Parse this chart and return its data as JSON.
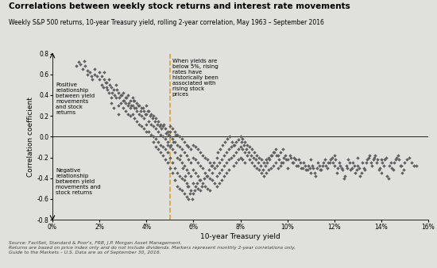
{
  "title": "Correlations between weekly stock returns and interest rate movements",
  "subtitle": "Weekly S&P 500 returns, 10-year Treasury yield, rolling 2-year correlation, May 1963 – September 2016",
  "xlabel": "10-year Treasury yield",
  "ylabel": "Correlation coefficient",
  "xlim": [
    0,
    16
  ],
  "ylim": [
    -0.8,
    0.8
  ],
  "xticks": [
    0,
    2,
    4,
    6,
    8,
    10,
    12,
    14,
    16
  ],
  "yticks": [
    -0.8,
    -0.6,
    -0.4,
    -0.2,
    0.0,
    0.2,
    0.4,
    0.6,
    0.8
  ],
  "vline_x": 5.0,
  "vline_color": "#E8A020",
  "marker_color": "#606060",
  "marker_size": 5,
  "bg_color": "#E0E0DC",
  "annotation_right": "When yields are\nbelow 5%, rising\nrates have\nhistorically been\nassociated with\nrising stock\nprices",
  "annotation_left_top": "Positive\nrelationship\nbetween yield\nmovements\nand stock\nreturns",
  "annotation_left_bot": "Negative\nrelationship\nbetween yield\nmovements and\nstock returns",
  "source_text": "Source: FactSet, Standard & Poor's, FRB, J.P. Morgan Asset Management.\nReturns are based on price index only and do not include dividends. Markers represent monthly 2-year correlations only.\nGuide to the Markets – U.S. Data are as of September 30, 2016.",
  "scatter_data": [
    [
      1.0,
      0.68
    ],
    [
      1.1,
      0.72
    ],
    [
      1.2,
      0.7
    ],
    [
      1.3,
      0.65
    ],
    [
      1.35,
      0.73
    ],
    [
      1.4,
      0.68
    ],
    [
      1.5,
      0.64
    ],
    [
      1.5,
      0.6
    ],
    [
      1.6,
      0.62
    ],
    [
      1.65,
      0.58
    ],
    [
      1.7,
      0.55
    ],
    [
      1.8,
      0.6
    ],
    [
      1.8,
      0.65
    ],
    [
      1.9,
      0.58
    ],
    [
      2.0,
      0.62
    ],
    [
      2.0,
      0.55
    ],
    [
      2.1,
      0.5
    ],
    [
      2.1,
      0.58
    ],
    [
      2.2,
      0.62
    ],
    [
      2.2,
      0.55
    ],
    [
      2.3,
      0.48
    ],
    [
      2.3,
      0.52
    ],
    [
      2.4,
      0.55
    ],
    [
      2.4,
      0.42
    ],
    [
      2.5,
      0.48
    ],
    [
      2.5,
      0.38
    ],
    [
      2.5,
      0.32
    ],
    [
      2.6,
      0.45
    ],
    [
      2.6,
      0.28
    ],
    [
      2.7,
      0.5
    ],
    [
      2.7,
      0.38
    ],
    [
      2.8,
      0.42
    ],
    [
      2.8,
      0.3
    ],
    [
      2.8,
      0.22
    ],
    [
      2.9,
      0.4
    ],
    [
      2.9,
      0.32
    ],
    [
      3.0,
      0.42
    ],
    [
      3.0,
      0.35
    ],
    [
      3.0,
      0.28
    ],
    [
      3.1,
      0.38
    ],
    [
      3.1,
      0.32
    ],
    [
      3.1,
      0.25
    ],
    [
      3.2,
      0.4
    ],
    [
      3.2,
      0.3
    ],
    [
      3.2,
      0.22
    ],
    [
      3.3,
      0.35
    ],
    [
      3.3,
      0.28
    ],
    [
      3.3,
      0.2
    ],
    [
      3.4,
      0.38
    ],
    [
      3.4,
      0.3
    ],
    [
      3.4,
      0.22
    ],
    [
      3.5,
      0.35
    ],
    [
      3.5,
      0.28
    ],
    [
      3.5,
      0.18
    ],
    [
      3.6,
      0.32
    ],
    [
      3.6,
      0.25
    ],
    [
      3.6,
      0.15
    ],
    [
      3.7,
      0.3
    ],
    [
      3.7,
      0.22
    ],
    [
      3.7,
      0.12
    ],
    [
      3.8,
      0.28
    ],
    [
      3.8,
      0.2
    ],
    [
      3.8,
      0.1
    ],
    [
      3.9,
      0.25
    ],
    [
      3.9,
      0.18
    ],
    [
      3.9,
      0.08
    ],
    [
      4.0,
      0.3
    ],
    [
      4.0,
      0.22
    ],
    [
      4.0,
      0.12
    ],
    [
      4.0,
      0.05
    ],
    [
      4.1,
      0.25
    ],
    [
      4.1,
      0.15
    ],
    [
      4.1,
      0.05
    ],
    [
      4.2,
      0.22
    ],
    [
      4.2,
      0.12
    ],
    [
      4.2,
      0.02
    ],
    [
      4.3,
      0.2
    ],
    [
      4.3,
      0.1
    ],
    [
      4.3,
      0.0
    ],
    [
      4.3,
      -0.05
    ],
    [
      4.4,
      0.18
    ],
    [
      4.4,
      0.08
    ],
    [
      4.4,
      -0.02
    ],
    [
      4.4,
      -0.1
    ],
    [
      4.5,
      0.15
    ],
    [
      4.5,
      0.05
    ],
    [
      4.5,
      -0.05
    ],
    [
      4.5,
      -0.12
    ],
    [
      4.6,
      0.12
    ],
    [
      4.6,
      0.02
    ],
    [
      4.6,
      -0.08
    ],
    [
      4.6,
      -0.15
    ],
    [
      4.7,
      0.1
    ],
    [
      4.7,
      0.0
    ],
    [
      4.7,
      -0.1
    ],
    [
      4.7,
      -0.18
    ],
    [
      4.8,
      0.08
    ],
    [
      4.8,
      -0.02
    ],
    [
      4.8,
      -0.12
    ],
    [
      4.8,
      -0.22
    ],
    [
      4.9,
      0.05
    ],
    [
      4.9,
      -0.05
    ],
    [
      4.9,
      -0.15
    ],
    [
      4.9,
      -0.25
    ],
    [
      4.9,
      -0.08
    ],
    [
      5.0,
      0.1
    ],
    [
      5.0,
      0.0
    ],
    [
      5.0,
      -0.1
    ],
    [
      5.0,
      -0.2
    ],
    [
      5.0,
      -0.3
    ],
    [
      5.0,
      0.05
    ],
    [
      5.1,
      0.08
    ],
    [
      5.1,
      -0.02
    ],
    [
      5.1,
      -0.12
    ],
    [
      5.1,
      -0.25
    ],
    [
      5.1,
      -0.35
    ],
    [
      5.2,
      0.05
    ],
    [
      5.2,
      -0.05
    ],
    [
      5.2,
      -0.15
    ],
    [
      5.2,
      -0.3
    ],
    [
      5.2,
      -0.42
    ],
    [
      5.3,
      0.02
    ],
    [
      5.3,
      -0.08
    ],
    [
      5.3,
      -0.2
    ],
    [
      5.3,
      -0.35
    ],
    [
      5.3,
      -0.48
    ],
    [
      5.4,
      0.0
    ],
    [
      5.4,
      -0.1
    ],
    [
      5.4,
      -0.22
    ],
    [
      5.4,
      -0.38
    ],
    [
      5.4,
      -0.5
    ],
    [
      5.5,
      -0.02
    ],
    [
      5.5,
      -0.12
    ],
    [
      5.5,
      -0.25
    ],
    [
      5.5,
      -0.4
    ],
    [
      5.5,
      -0.52
    ],
    [
      5.6,
      -0.05
    ],
    [
      5.6,
      -0.15
    ],
    [
      5.6,
      -0.28
    ],
    [
      5.6,
      -0.42
    ],
    [
      5.6,
      -0.55
    ],
    [
      5.7,
      -0.08
    ],
    [
      5.7,
      -0.18
    ],
    [
      5.7,
      -0.32
    ],
    [
      5.7,
      -0.45
    ],
    [
      5.7,
      -0.58
    ],
    [
      5.8,
      -0.1
    ],
    [
      5.8,
      -0.22
    ],
    [
      5.8,
      -0.35
    ],
    [
      5.8,
      -0.48
    ],
    [
      5.8,
      -0.6
    ],
    [
      5.9,
      -0.12
    ],
    [
      5.9,
      -0.25
    ],
    [
      5.9,
      -0.38
    ],
    [
      5.9,
      -0.52
    ],
    [
      6.0,
      -0.08
    ],
    [
      6.0,
      -0.2
    ],
    [
      6.0,
      -0.32
    ],
    [
      6.0,
      -0.45
    ],
    [
      6.0,
      -0.55
    ],
    [
      6.1,
      -0.1
    ],
    [
      6.1,
      -0.22
    ],
    [
      6.1,
      -0.35
    ],
    [
      6.1,
      -0.48
    ],
    [
      6.2,
      -0.12
    ],
    [
      6.2,
      -0.25
    ],
    [
      6.2,
      -0.38
    ],
    [
      6.2,
      -0.5
    ],
    [
      6.3,
      -0.15
    ],
    [
      6.3,
      -0.28
    ],
    [
      6.3,
      -0.42
    ],
    [
      6.3,
      -0.52
    ],
    [
      6.4,
      -0.18
    ],
    [
      6.4,
      -0.3
    ],
    [
      6.4,
      -0.45
    ],
    [
      6.5,
      -0.2
    ],
    [
      6.5,
      -0.35
    ],
    [
      6.5,
      -0.48
    ],
    [
      6.6,
      -0.22
    ],
    [
      6.6,
      -0.38
    ],
    [
      6.6,
      -0.5
    ],
    [
      6.7,
      -0.25
    ],
    [
      6.7,
      -0.4
    ],
    [
      6.7,
      -0.52
    ],
    [
      6.8,
      -0.28
    ],
    [
      6.8,
      -0.42
    ],
    [
      6.8,
      -0.35
    ],
    [
      6.9,
      -0.3
    ],
    [
      6.9,
      -0.45
    ],
    [
      7.0,
      -0.28
    ],
    [
      7.0,
      -0.38
    ],
    [
      7.0,
      -0.48
    ],
    [
      7.0,
      -0.2
    ],
    [
      7.1,
      -0.25
    ],
    [
      7.1,
      -0.35
    ],
    [
      7.1,
      -0.45
    ],
    [
      7.2,
      -0.22
    ],
    [
      7.2,
      -0.32
    ],
    [
      7.2,
      -0.42
    ],
    [
      7.3,
      -0.18
    ],
    [
      7.3,
      -0.28
    ],
    [
      7.3,
      -0.38
    ],
    [
      7.4,
      -0.15
    ],
    [
      7.4,
      -0.25
    ],
    [
      7.4,
      -0.35
    ],
    [
      7.5,
      -0.12
    ],
    [
      7.5,
      -0.22
    ],
    [
      7.5,
      -0.32
    ],
    [
      7.6,
      -0.1
    ],
    [
      7.6,
      -0.2
    ],
    [
      7.7,
      -0.08
    ],
    [
      7.7,
      -0.18
    ],
    [
      7.7,
      -0.28
    ],
    [
      7.8,
      -0.05
    ],
    [
      7.8,
      -0.15
    ],
    [
      7.8,
      -0.25
    ],
    [
      7.9,
      -0.03
    ],
    [
      7.9,
      -0.12
    ],
    [
      7.9,
      -0.22
    ],
    [
      8.0,
      0.0
    ],
    [
      8.0,
      -0.1
    ],
    [
      8.0,
      -0.2
    ],
    [
      8.1,
      -0.02
    ],
    [
      8.1,
      -0.12
    ],
    [
      8.1,
      -0.22
    ],
    [
      8.2,
      -0.05
    ],
    [
      8.2,
      -0.15
    ],
    [
      8.2,
      -0.25
    ],
    [
      8.3,
      -0.08
    ],
    [
      8.3,
      -0.18
    ],
    [
      8.4,
      -0.1
    ],
    [
      8.4,
      -0.22
    ],
    [
      8.5,
      -0.12
    ],
    [
      8.5,
      -0.25
    ],
    [
      8.6,
      -0.15
    ],
    [
      8.6,
      -0.28
    ],
    [
      8.7,
      -0.18
    ],
    [
      8.7,
      -0.3
    ],
    [
      8.8,
      -0.2
    ],
    [
      8.8,
      -0.32
    ],
    [
      8.9,
      -0.22
    ],
    [
      8.9,
      -0.35
    ],
    [
      9.0,
      -0.25
    ],
    [
      9.0,
      -0.38
    ],
    [
      9.1,
      -0.22
    ],
    [
      9.1,
      -0.35
    ],
    [
      9.2,
      -0.2
    ],
    [
      9.2,
      -0.32
    ],
    [
      9.3,
      -0.18
    ],
    [
      9.3,
      -0.3
    ],
    [
      9.4,
      -0.15
    ],
    [
      9.4,
      -0.28
    ],
    [
      9.5,
      -0.12
    ],
    [
      9.5,
      -0.25
    ],
    [
      9.6,
      -0.18
    ],
    [
      9.6,
      -0.3
    ],
    [
      9.7,
      -0.15
    ],
    [
      9.7,
      -0.28
    ],
    [
      9.8,
      -0.12
    ],
    [
      9.8,
      -0.25
    ],
    [
      9.9,
      -0.18
    ],
    [
      10.0,
      -0.22
    ],
    [
      10.0,
      -0.3
    ],
    [
      10.1,
      -0.18
    ],
    [
      10.2,
      -0.25
    ],
    [
      10.3,
      -0.2
    ],
    [
      10.4,
      -0.28
    ],
    [
      10.5,
      -0.22
    ],
    [
      10.6,
      -0.3
    ],
    [
      10.7,
      -0.25
    ],
    [
      10.8,
      -0.32
    ],
    [
      10.9,
      -0.28
    ],
    [
      11.0,
      -0.35
    ],
    [
      11.0,
      -0.22
    ],
    [
      11.1,
      -0.3
    ],
    [
      11.2,
      -0.38
    ],
    [
      11.3,
      -0.25
    ],
    [
      11.4,
      -0.32
    ],
    [
      11.5,
      -0.28
    ],
    [
      11.6,
      -0.22
    ],
    [
      11.7,
      -0.3
    ],
    [
      11.8,
      -0.25
    ],
    [
      11.9,
      -0.2
    ],
    [
      12.0,
      -0.28
    ],
    [
      12.0,
      -0.18
    ],
    [
      12.1,
      -0.35
    ],
    [
      12.2,
      -0.25
    ],
    [
      12.3,
      -0.3
    ],
    [
      12.4,
      -0.4
    ],
    [
      12.5,
      -0.28
    ],
    [
      12.6,
      -0.22
    ],
    [
      12.7,
      -0.32
    ],
    [
      12.8,
      -0.25
    ],
    [
      12.9,
      -0.35
    ],
    [
      13.0,
      -0.28
    ],
    [
      13.0,
      -0.2
    ],
    [
      13.1,
      -0.38
    ],
    [
      13.2,
      -0.25
    ],
    [
      13.3,
      -0.32
    ],
    [
      13.4,
      -0.22
    ],
    [
      13.5,
      -0.18
    ],
    [
      13.6,
      -0.28
    ],
    [
      13.7,
      -0.2
    ],
    [
      13.8,
      -0.25
    ],
    [
      13.9,
      -0.32
    ],
    [
      14.0,
      -0.22
    ],
    [
      14.0,
      -0.35
    ],
    [
      14.1,
      -0.28
    ],
    [
      14.2,
      -0.2
    ],
    [
      14.3,
      -0.4
    ],
    [
      14.4,
      -0.25
    ],
    [
      14.5,
      -0.32
    ],
    [
      14.6,
      -0.22
    ],
    [
      14.7,
      -0.18
    ],
    [
      14.8,
      -0.28
    ],
    [
      14.9,
      -0.35
    ],
    [
      15.0,
      -0.25
    ],
    [
      15.2,
      -0.2
    ],
    [
      15.5,
      -0.28
    ],
    [
      4.85,
      0.03
    ],
    [
      5.05,
      -0.08
    ],
    [
      5.15,
      -0.05
    ],
    [
      4.75,
      0.12
    ],
    [
      5.25,
      0.02
    ],
    [
      5.45,
      -0.18
    ],
    [
      5.55,
      -0.3
    ],
    [
      5.65,
      -0.38
    ],
    [
      5.75,
      -0.48
    ],
    [
      5.85,
      -0.55
    ],
    [
      5.95,
      -0.6
    ],
    [
      6.05,
      -0.52
    ],
    [
      6.15,
      -0.45
    ],
    [
      6.25,
      -0.42
    ],
    [
      6.35,
      -0.48
    ],
    [
      6.45,
      -0.4
    ],
    [
      6.55,
      -0.38
    ],
    [
      6.65,
      -0.32
    ],
    [
      6.75,
      -0.28
    ],
    [
      6.85,
      -0.25
    ],
    [
      7.05,
      -0.15
    ],
    [
      7.15,
      -0.12
    ],
    [
      7.25,
      -0.08
    ],
    [
      7.35,
      -0.05
    ],
    [
      7.45,
      -0.02
    ],
    [
      7.55,
      0.0
    ],
    [
      7.65,
      -0.05
    ],
    [
      7.75,
      -0.08
    ],
    [
      8.05,
      -0.05
    ],
    [
      8.15,
      -0.08
    ],
    [
      8.25,
      -0.12
    ],
    [
      8.35,
      -0.15
    ],
    [
      8.45,
      -0.18
    ],
    [
      8.55,
      -0.2
    ],
    [
      8.65,
      -0.22
    ],
    [
      8.75,
      -0.25
    ],
    [
      8.85,
      -0.28
    ],
    [
      8.95,
      -0.32
    ],
    [
      9.05,
      -0.28
    ],
    [
      9.15,
      -0.25
    ],
    [
      9.25,
      -0.22
    ],
    [
      9.35,
      -0.18
    ],
    [
      9.45,
      -0.15
    ],
    [
      9.55,
      -0.18
    ],
    [
      9.65,
      -0.22
    ],
    [
      9.75,
      -0.25
    ],
    [
      9.85,
      -0.2
    ],
    [
      9.95,
      -0.22
    ],
    [
      10.15,
      -0.2
    ],
    [
      10.25,
      -0.25
    ],
    [
      10.35,
      -0.22
    ],
    [
      10.45,
      -0.28
    ],
    [
      10.55,
      -0.25
    ],
    [
      10.65,
      -0.3
    ],
    [
      10.75,
      -0.28
    ],
    [
      10.85,
      -0.32
    ],
    [
      10.95,
      -0.3
    ],
    [
      11.05,
      -0.28
    ],
    [
      11.15,
      -0.35
    ],
    [
      11.25,
      -0.3
    ],
    [
      11.35,
      -0.28
    ],
    [
      11.45,
      -0.32
    ],
    [
      11.55,
      -0.25
    ],
    [
      11.65,
      -0.28
    ],
    [
      11.75,
      -0.25
    ],
    [
      11.85,
      -0.22
    ],
    [
      11.95,
      -0.25
    ],
    [
      12.05,
      -0.22
    ],
    [
      12.15,
      -0.3
    ],
    [
      12.25,
      -0.28
    ],
    [
      12.35,
      -0.32
    ],
    [
      12.45,
      -0.38
    ],
    [
      12.55,
      -0.3
    ],
    [
      12.65,
      -0.25
    ],
    [
      12.75,
      -0.3
    ],
    [
      12.85,
      -0.28
    ],
    [
      12.95,
      -0.32
    ],
    [
      13.05,
      -0.3
    ],
    [
      13.15,
      -0.35
    ],
    [
      13.25,
      -0.3
    ],
    [
      13.35,
      -0.25
    ],
    [
      13.45,
      -0.2
    ],
    [
      13.55,
      -0.25
    ],
    [
      13.65,
      -0.22
    ],
    [
      13.75,
      -0.18
    ],
    [
      13.85,
      -0.22
    ],
    [
      13.95,
      -0.3
    ],
    [
      14.05,
      -0.25
    ],
    [
      14.15,
      -0.22
    ],
    [
      14.25,
      -0.38
    ],
    [
      14.35,
      -0.28
    ],
    [
      14.45,
      -0.3
    ],
    [
      14.55,
      -0.25
    ],
    [
      14.65,
      -0.2
    ],
    [
      14.75,
      -0.22
    ],
    [
      14.85,
      -0.28
    ],
    [
      14.95,
      -0.32
    ],
    [
      15.1,
      -0.22
    ],
    [
      15.3,
      -0.25
    ],
    [
      15.4,
      -0.28
    ],
    [
      2.15,
      0.48
    ],
    [
      2.25,
      0.52
    ],
    [
      2.35,
      0.45
    ],
    [
      2.45,
      0.5
    ],
    [
      2.55,
      0.42
    ],
    [
      2.65,
      0.4
    ],
    [
      2.75,
      0.45
    ],
    [
      2.85,
      0.38
    ],
    [
      2.95,
      0.4
    ],
    [
      3.05,
      0.35
    ],
    [
      3.15,
      0.38
    ],
    [
      3.25,
      0.32
    ],
    [
      3.35,
      0.3
    ],
    [
      3.45,
      0.35
    ],
    [
      3.55,
      0.28
    ],
    [
      3.65,
      0.3
    ],
    [
      3.75,
      0.25
    ],
    [
      3.85,
      0.28
    ],
    [
      3.95,
      0.22
    ],
    [
      4.05,
      0.25
    ],
    [
      4.15,
      0.2
    ],
    [
      4.25,
      0.18
    ],
    [
      4.35,
      0.15
    ],
    [
      4.45,
      0.12
    ],
    [
      4.55,
      0.1
    ],
    [
      4.65,
      0.08
    ],
    [
      4.95,
      0.02
    ]
  ]
}
